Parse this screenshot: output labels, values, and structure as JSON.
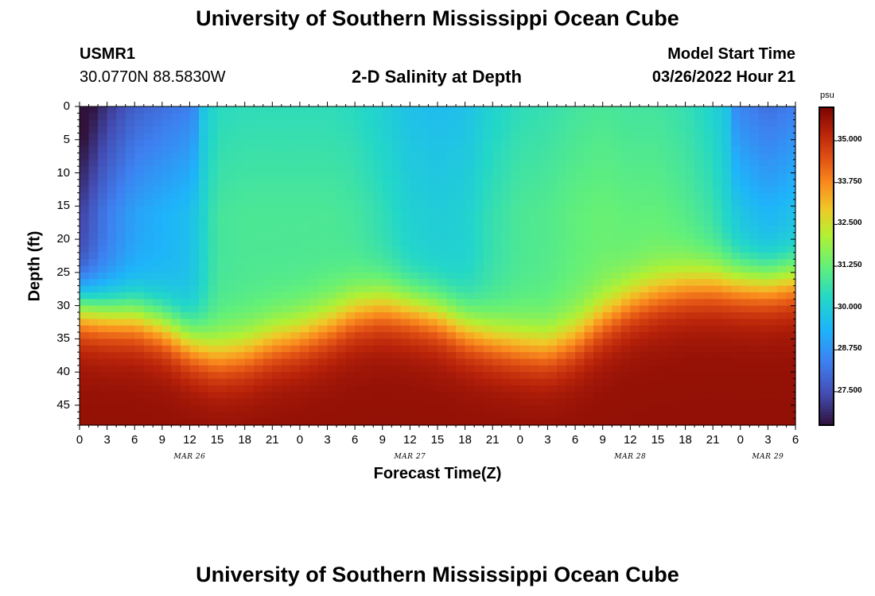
{
  "header": {
    "title": "University of Southern Mississippi Ocean Cube",
    "station_id": "USMR1",
    "station_coords": "30.0770N  88.5830W",
    "chart_title": "2-D Salinity at Depth",
    "model_start_label": "Model Start Time",
    "model_start_value": "03/26/2022 Hour 21"
  },
  "footer": {
    "title": "University of Southern Mississippi Ocean Cube"
  },
  "chart_data": {
    "type": "heatmap",
    "title": "2-D Salinity at Depth",
    "xlabel": "Forecast Time(Z)",
    "ylabel": "Depth (ft)",
    "x_unit": "hours from 00Z Mar 26",
    "x_range": [
      0,
      78
    ],
    "x_tick_labels": [
      "0",
      "3",
      "6",
      "9",
      "12",
      "15",
      "18",
      "21",
      "0",
      "3",
      "6",
      "9",
      "12",
      "15",
      "18",
      "21",
      "0",
      "3",
      "6",
      "9",
      "12",
      "15",
      "18",
      "21",
      "0",
      "3",
      "6"
    ],
    "day_labels": [
      "MAR 26",
      "MAR 27",
      "MAR 28",
      "MAR 29"
    ],
    "y_range": [
      0,
      48
    ],
    "y_inverted": true,
    "y_ticks": [
      0,
      5,
      10,
      15,
      20,
      25,
      30,
      35,
      40,
      45
    ],
    "colorbar": {
      "unit": "psu",
      "range": [
        26.5,
        36.0
      ],
      "tick_values": [
        35.0,
        33.75,
        32.5,
        31.25,
        30.0,
        28.75,
        27.5
      ],
      "tick_labels": [
        "35.000",
        "33.750",
        "32.500",
        "31.250",
        "30.000",
        "28.750",
        "27.500"
      ]
    },
    "profile_points": [
      {
        "x": 0,
        "mid_depth": 30.0,
        "top_salinity": 27.2
      },
      {
        "x": 3,
        "mid_depth": 31.0,
        "top_salinity": 28.3
      },
      {
        "x": 6,
        "mid_depth": 31.5,
        "top_salinity": 29.0
      },
      {
        "x": 9,
        "mid_depth": 33.0,
        "top_salinity": 29.3
      },
      {
        "x": 12,
        "mid_depth": 35.5,
        "top_salinity": 29.6
      },
      {
        "x": 15,
        "mid_depth": 37.5,
        "top_salinity": 30.8
      },
      {
        "x": 18,
        "mid_depth": 37.0,
        "top_salinity": 30.9
      },
      {
        "x": 21,
        "mid_depth": 35.5,
        "top_salinity": 30.9
      },
      {
        "x": 24,
        "mid_depth": 34.5,
        "top_salinity": 30.9
      },
      {
        "x": 27,
        "mid_depth": 33.0,
        "top_salinity": 30.9
      },
      {
        "x": 30,
        "mid_depth": 31.0,
        "top_salinity": 30.8
      },
      {
        "x": 33,
        "mid_depth": 30.0,
        "top_salinity": 30.5
      },
      {
        "x": 36,
        "mid_depth": 30.5,
        "top_salinity": 30.1
      },
      {
        "x": 39,
        "mid_depth": 31.5,
        "top_salinity": 30.0
      },
      {
        "x": 42,
        "mid_depth": 33.5,
        "top_salinity": 30.1
      },
      {
        "x": 45,
        "mid_depth": 35.0,
        "top_salinity": 30.6
      },
      {
        "x": 48,
        "mid_depth": 36.0,
        "top_salinity": 30.9
      },
      {
        "x": 51,
        "mid_depth": 36.5,
        "top_salinity": 31.0
      },
      {
        "x": 54,
        "mid_depth": 35.0,
        "top_salinity": 31.2
      },
      {
        "x": 57,
        "mid_depth": 32.0,
        "top_salinity": 31.3
      },
      {
        "x": 60,
        "mid_depth": 29.5,
        "top_salinity": 31.2
      },
      {
        "x": 63,
        "mid_depth": 28.0,
        "top_salinity": 31.2
      },
      {
        "x": 66,
        "mid_depth": 27.0,
        "top_salinity": 31.0
      },
      {
        "x": 69,
        "mid_depth": 26.5,
        "top_salinity": 30.6
      },
      {
        "x": 72,
        "mid_depth": 26.5,
        "top_salinity": 29.7
      },
      {
        "x": 75,
        "mid_depth": 26.5,
        "top_salinity": 29.3
      },
      {
        "x": 78,
        "mid_depth": 26.0,
        "top_salinity": 29.6
      }
    ],
    "bottom_salinity": 35.7,
    "grid": false
  }
}
